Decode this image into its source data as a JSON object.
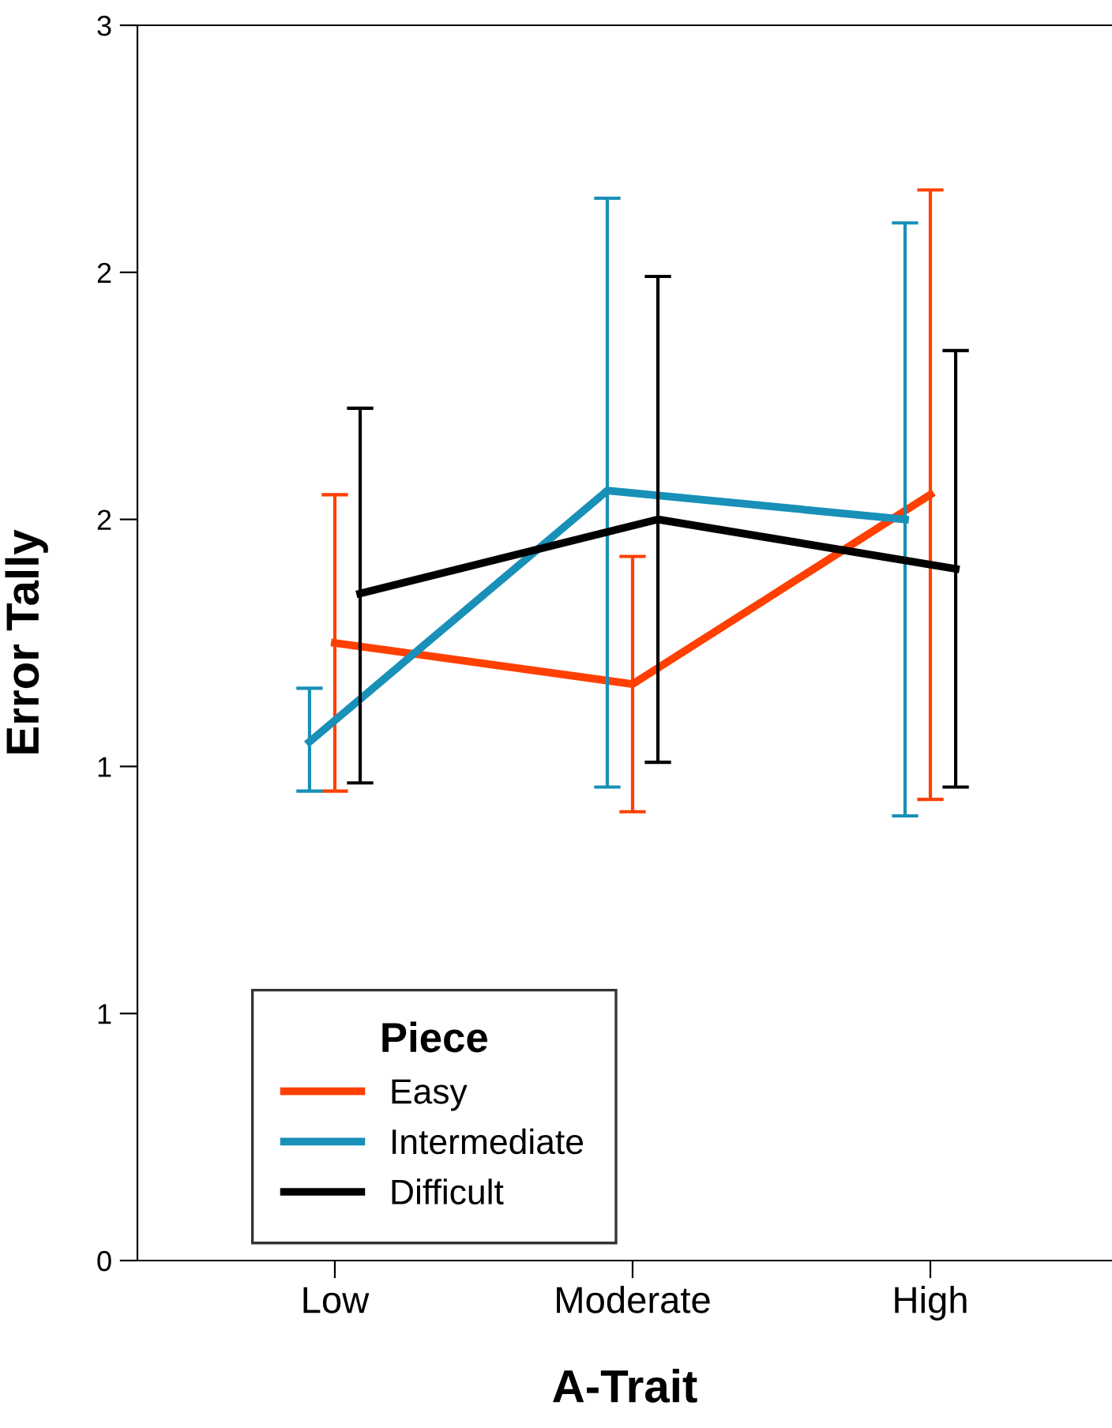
{
  "chart_data": {
    "type": "line",
    "xlabel": "A-Trait",
    "ylabel": "Error Tally",
    "legend_title": "Piece",
    "categories": [
      "Low",
      "Moderate",
      "High"
    ],
    "series": [
      {
        "name": "Easy",
        "color": "#ff4000",
        "values": [
          1.5,
          1.4,
          1.86
        ],
        "errors": [
          [
            1.14,
            1.86
          ],
          [
            1.09,
            1.71
          ],
          [
            1.12,
            2.6
          ]
        ]
      },
      {
        "name": "Intermediate",
        "color": "#1890b8",
        "values": [
          1.26,
          1.87,
          1.8
        ],
        "errors": [
          [
            1.14,
            1.39
          ],
          [
            1.15,
            2.58
          ],
          [
            1.08,
            2.52
          ]
        ]
      },
      {
        "name": "Difficult",
        "color": "#000000",
        "values": [
          1.62,
          1.8,
          1.68
        ],
        "errors": [
          [
            1.16,
            2.07
          ],
          [
            1.21,
            2.39
          ],
          [
            1.15,
            2.21
          ]
        ]
      }
    ],
    "ylim": [
      0,
      3
    ],
    "yticks": [
      0,
      {
        "value": 0.6,
        "label": "1"
      },
      {
        "value": 1.2,
        "label": "1"
      },
      {
        "value": 1.8,
        "label": "2"
      },
      {
        "value": 2.4,
        "label": "2"
      },
      3
    ],
    "grid": false,
    "legend": "bottom left",
    "marker": "none",
    "line_style": "solid"
  }
}
